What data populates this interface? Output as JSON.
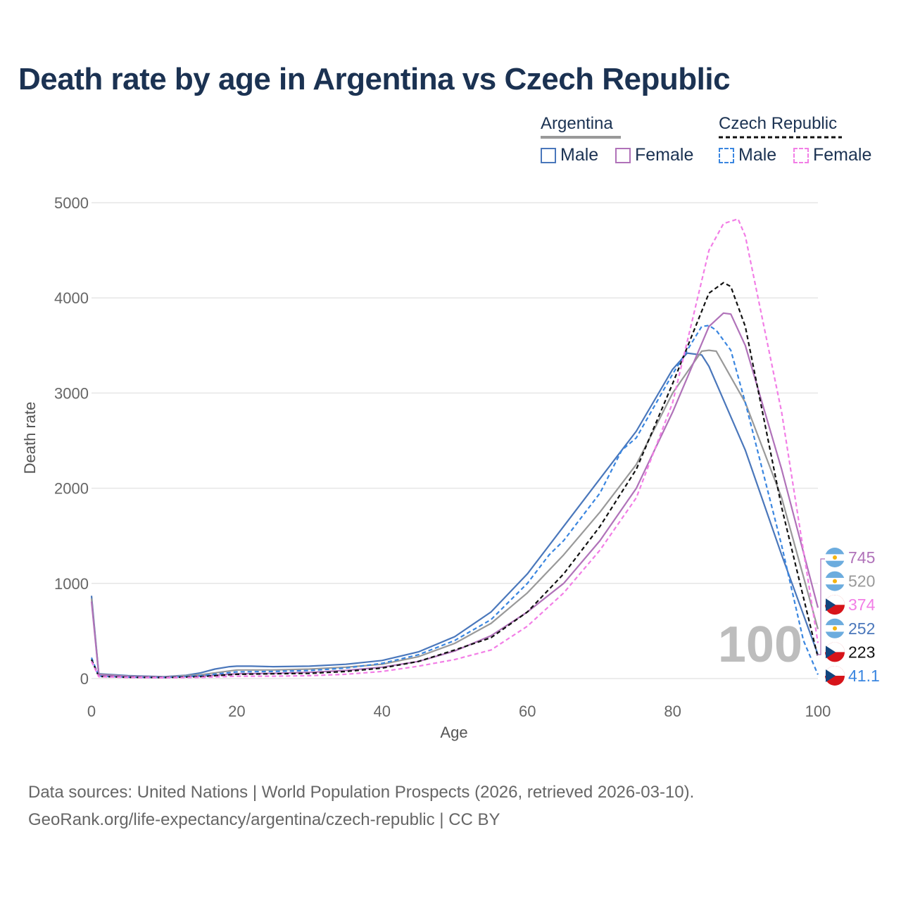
{
  "title": "Death rate by age in Argentina vs Czech Republic",
  "legend": {
    "groups": [
      {
        "name": "Argentina",
        "style": "solid",
        "line_color": "#999999",
        "items": [
          {
            "label": "Male",
            "color": "#4a77bb"
          },
          {
            "label": "Female",
            "color": "#b072b9"
          }
        ]
      },
      {
        "name": "Czech Republic",
        "style": "dashed",
        "line_color": "#111111",
        "items": [
          {
            "label": "Male",
            "color": "#3a86e0"
          },
          {
            "label": "Female",
            "color": "#f27ee6"
          }
        ]
      }
    ]
  },
  "watermark_age": "100",
  "footer": {
    "line1": "Data sources: United Nations | World Population Prospects (2026, retrieved 2026-03-10).",
    "line2": "GeoRank.org/life-expectancy/argentina/czech-republic | CC BY"
  },
  "chart_data": {
    "type": "line",
    "xlabel": "Age",
    "ylabel": "Death rate",
    "xlim": [
      0,
      100
    ],
    "ylim": [
      0,
      5000
    ],
    "xticks": [
      0,
      20,
      40,
      60,
      80,
      100
    ],
    "yticks": [
      0,
      1000,
      2000,
      3000,
      4000,
      5000
    ],
    "grid": true,
    "series": [
      {
        "name": "Argentina Male",
        "country": "Argentina",
        "sex": "Male",
        "color": "#4a77bb",
        "dash": false,
        "x": [
          0,
          1,
          5,
          10,
          13,
          15,
          17,
          19,
          20,
          22,
          25,
          30,
          35,
          40,
          45,
          50,
          55,
          60,
          65,
          70,
          75,
          80,
          82,
          84,
          85,
          90,
          95,
          100
        ],
        "y": [
          870,
          50,
          30,
          20,
          35,
          60,
          100,
          125,
          130,
          130,
          125,
          130,
          150,
          190,
          280,
          440,
          700,
          1100,
          1600,
          2100,
          2600,
          3250,
          3420,
          3400,
          3280,
          2400,
          1300,
          252
        ],
        "end_value": "252",
        "flag": "ar"
      },
      {
        "name": "Argentina Total",
        "country": "Argentina",
        "sex": "Total",
        "color": "#999999",
        "dash": false,
        "x": [
          0,
          1,
          5,
          10,
          15,
          20,
          25,
          30,
          35,
          40,
          45,
          50,
          55,
          60,
          65,
          70,
          75,
          80,
          84,
          85,
          86,
          90,
          95,
          100
        ],
        "y": [
          840,
          45,
          25,
          18,
          40,
          90,
          90,
          100,
          120,
          150,
          230,
          370,
          580,
          900,
          1300,
          1750,
          2250,
          3000,
          3440,
          3450,
          3440,
          2900,
          1900,
          520
        ],
        "end_value": "520",
        "flag": "ar"
      },
      {
        "name": "Argentina Female",
        "country": "Argentina",
        "sex": "Female",
        "color": "#b072b9",
        "dash": false,
        "x": [
          0,
          1,
          5,
          10,
          15,
          20,
          25,
          30,
          35,
          40,
          45,
          50,
          55,
          60,
          65,
          70,
          75,
          80,
          85,
          87,
          88,
          90,
          95,
          100
        ],
        "y": [
          810,
          40,
          22,
          15,
          25,
          50,
          55,
          65,
          85,
          120,
          180,
          290,
          450,
          700,
          1000,
          1450,
          2000,
          2800,
          3700,
          3840,
          3830,
          3500,
          2200,
          745
        ],
        "end_value": "745",
        "flag": "ar"
      },
      {
        "name": "Czech Republic Male",
        "country": "Czech Republic",
        "sex": "Male",
        "color": "#3a86e0",
        "dash": true,
        "x": [
          0,
          1,
          5,
          10,
          15,
          20,
          25,
          30,
          35,
          40,
          45,
          50,
          55,
          60,
          63,
          65,
          70,
          73,
          75,
          80,
          84,
          85,
          86,
          88,
          90,
          95,
          98,
          100
        ],
        "y": [
          220,
          25,
          15,
          12,
          30,
          70,
          75,
          85,
          110,
          160,
          250,
          400,
          620,
          1000,
          1300,
          1450,
          1950,
          2400,
          2530,
          3200,
          3700,
          3710,
          3660,
          3450,
          2900,
          1400,
          400,
          41.1
        ],
        "end_value": "41.1",
        "flag": "cz"
      },
      {
        "name": "Czech Republic Total",
        "country": "Czech Republic",
        "sex": "Total",
        "color": "#111111",
        "dash": true,
        "x": [
          0,
          1,
          5,
          10,
          15,
          20,
          25,
          30,
          35,
          40,
          45,
          50,
          55,
          60,
          65,
          70,
          75,
          80,
          85,
          87,
          88,
          90,
          95,
          100
        ],
        "y": [
          200,
          22,
          13,
          10,
          20,
          45,
          50,
          55,
          75,
          110,
          180,
          300,
          430,
          700,
          1100,
          1600,
          2200,
          3100,
          4050,
          4160,
          4120,
          3700,
          1800,
          223
        ],
        "end_value": "223",
        "flag": "cz"
      },
      {
        "name": "Czech Republic Female",
        "country": "Czech Republic",
        "sex": "Female",
        "color": "#f27ee6",
        "dash": true,
        "x": [
          0,
          1,
          5,
          10,
          15,
          20,
          25,
          30,
          35,
          40,
          45,
          50,
          55,
          60,
          65,
          70,
          75,
          80,
          85,
          87,
          89,
          90,
          95,
          100
        ],
        "y": [
          180,
          20,
          11,
          8,
          12,
          25,
          25,
          30,
          45,
          75,
          130,
          200,
          300,
          550,
          900,
          1350,
          1900,
          2900,
          4500,
          4780,
          4830,
          4650,
          2800,
          374
        ],
        "end_value": "374",
        "flag": "cz"
      }
    ]
  }
}
